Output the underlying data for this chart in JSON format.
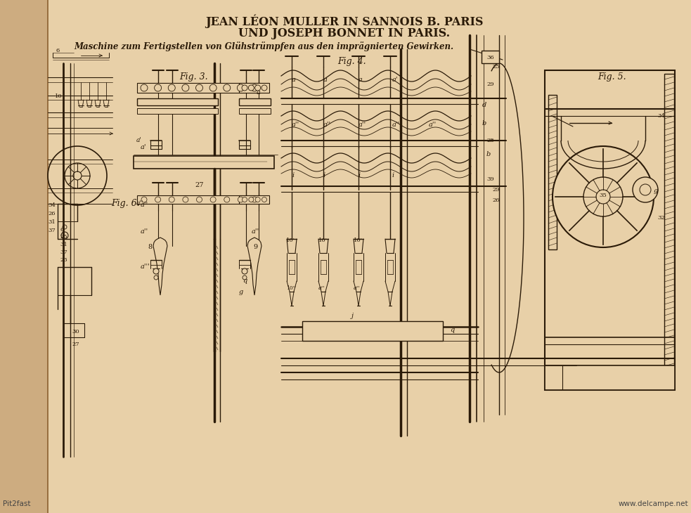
{
  "bg_color": "#e8d0a8",
  "left_shadow_color": "#c8a878",
  "line_color": "#2a1a08",
  "draw_color": "#2a1a08",
  "title_line1": "JEAN LÉON MULLER IN SANNOIS B. PARIS",
  "title_line2": "UND JOSEPH BONNET IN PARIS.",
  "subtitle": "Maschine zum Fertigstellen von Glühstrümpfen aus den imprägnierten Gewirken.",
  "watermark_left": "Pit2fast",
  "watermark_right": "www.delcampe.net",
  "title_fontsize": 11.5,
  "subtitle_fontsize": 8.5,
  "watermark_fontsize": 7.5
}
